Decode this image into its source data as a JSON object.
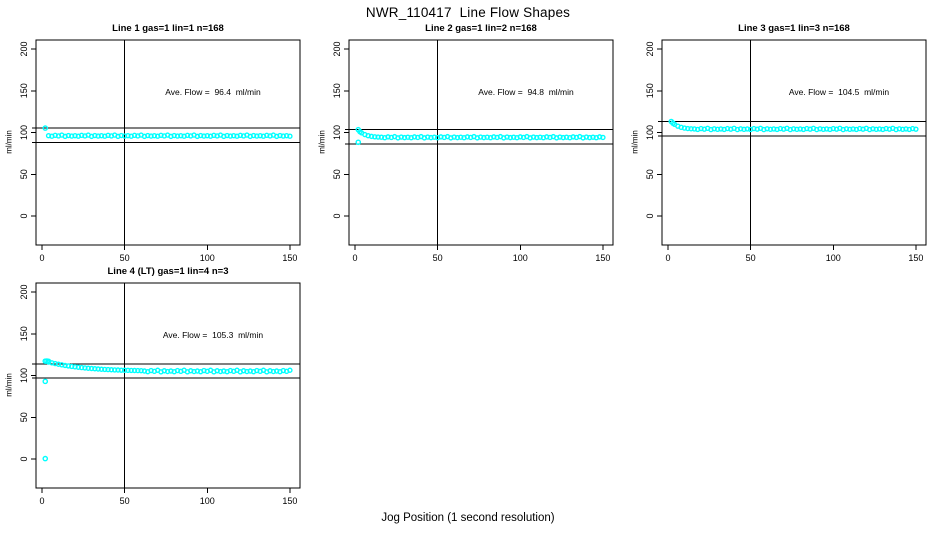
{
  "page": {
    "title": "NWR_110417  Line Flow Shapes",
    "xlabel": "Jog Position (1 second resolution)"
  },
  "chart_data": [
    {
      "type": "scatter",
      "title": "Line 1 gas=1 lin=1 n=168",
      "annotation": "Ave. Flow =  96.4  ml/min",
      "ave_flow_ml_min": 96.4,
      "ylabel": "ml/min",
      "point_color": "#00FFFF",
      "line_color": "#000000",
      "xticks": [
        0,
        50,
        100,
        150
      ],
      "yticks": [
        0,
        50,
        100,
        150,
        200
      ],
      "xlim": [
        -3.6,
        156.1
      ],
      "ylim": [
        -34.7,
        210.8
      ],
      "vline_x": 50,
      "hlines": [
        105.4,
        88.0
      ],
      "series": {
        "x_start": 4,
        "x_step": 2,
        "y": [
          96.2,
          95.6,
          96.6,
          95.9,
          96.9,
          95.4,
          96.4,
          95.7,
          96.2,
          95.6,
          96.6,
          95.9,
          96.9,
          95.4,
          96.4,
          95.7,
          96.2,
          95.6,
          96.6,
          95.9,
          96.9,
          95.4,
          96.4,
          95.7,
          96.2,
          95.6,
          96.6,
          95.9,
          96.9,
          95.4,
          96.4,
          95.7,
          96.2,
          95.6,
          96.6,
          95.9,
          96.9,
          95.4,
          96.4,
          95.7,
          96.2,
          95.6,
          96.6,
          95.9,
          96.9,
          95.4,
          96.4,
          95.7,
          96.2,
          95.6,
          96.6,
          95.9,
          96.9,
          95.4,
          96.4,
          95.7,
          96.2,
          95.6,
          96.6,
          95.9,
          96.9,
          95.4,
          96.4,
          95.7,
          96.2,
          95.6,
          96.6,
          95.9,
          96.9,
          95.4,
          96.4,
          95.7,
          96.2,
          95.6
        ]
      },
      "extra_points": [
        [
          2,
          105.3
        ]
      ]
    },
    {
      "type": "scatter",
      "title": "Line 2 gas=1 lin=2 n=168",
      "annotation": "Ave. Flow =  94.8  ml/min",
      "ave_flow_ml_min": 94.8,
      "ylabel": "ml/min",
      "point_color": "#00FFFF",
      "line_color": "#000000",
      "xticks": [
        0,
        50,
        100,
        150
      ],
      "yticks": [
        0,
        50,
        100,
        150,
        200
      ],
      "xlim": [
        -3.6,
        156.1
      ],
      "ylim": [
        -34.7,
        210.8
      ],
      "vline_x": 50,
      "hlines": [
        103.4,
        86.4
      ],
      "series": {
        "x_start": 4,
        "x_step": 2,
        "y": [
          99.6,
          97.5,
          96.2,
          95.4,
          94.9,
          94.6,
          94.4,
          93.8,
          94.8,
          94.1,
          95.1,
          93.6,
          94.6,
          93.9,
          94.4,
          93.8,
          94.8,
          94.1,
          95.1,
          93.6,
          94.6,
          93.9,
          94.4,
          93.8,
          94.8,
          94.1,
          95.1,
          93.6,
          94.6,
          93.9,
          94.4,
          93.8,
          94.8,
          94.1,
          95.1,
          93.6,
          94.6,
          93.9,
          94.4,
          93.8,
          94.8,
          94.1,
          95.1,
          93.6,
          94.6,
          93.9,
          94.4,
          93.8,
          94.8,
          94.1,
          95.1,
          93.6,
          94.6,
          93.9,
          94.4,
          93.8,
          94.8,
          94.1,
          95.1,
          93.6,
          94.6,
          93.9,
          94.4,
          93.8,
          94.8,
          94.1,
          95.1,
          93.6,
          94.6,
          93.9,
          94.4,
          93.8,
          94.8,
          94.1
        ]
      },
      "extra_points": [
        [
          2,
          103.4
        ],
        [
          3,
          101.0
        ],
        [
          2,
          88.3
        ]
      ]
    },
    {
      "type": "scatter",
      "title": "Line 3 gas=1 lin=3 n=168",
      "annotation": "Ave. Flow =  104.5  ml/min",
      "ave_flow_ml_min": 104.5,
      "ylabel": "ml/min",
      "point_color": "#00FFFF",
      "line_color": "#000000",
      "xticks": [
        0,
        50,
        100,
        150
      ],
      "yticks": [
        0,
        50,
        100,
        150,
        200
      ],
      "xlim": [
        -3.6,
        156.1
      ],
      "ylim": [
        -34.7,
        210.8
      ],
      "vline_x": 50,
      "hlines": [
        113.0,
        96.0
      ],
      "series": {
        "x_start": 4,
        "x_step": 2,
        "y": [
          109.8,
          107.6,
          106.2,
          105.3,
          104.8,
          104.5,
          104.3,
          103.7,
          104.7,
          104.0,
          105.0,
          103.5,
          104.5,
          103.8,
          104.3,
          103.7,
          104.7,
          104.0,
          105.0,
          103.5,
          104.5,
          103.8,
          104.3,
          103.7,
          104.7,
          104.0,
          105.0,
          103.5,
          104.5,
          103.8,
          104.3,
          103.7,
          104.7,
          104.0,
          105.0,
          103.5,
          104.5,
          103.8,
          104.3,
          103.7,
          104.7,
          104.0,
          105.0,
          103.5,
          104.5,
          103.8,
          104.3,
          103.7,
          104.7,
          104.0,
          105.0,
          103.5,
          104.5,
          103.8,
          104.3,
          103.7,
          104.7,
          104.0,
          105.0,
          103.5,
          104.5,
          103.8,
          104.3,
          103.7,
          104.7,
          104.0,
          105.0,
          103.5,
          104.5,
          103.8,
          104.3,
          103.7,
          104.7,
          104.0
        ]
      },
      "extra_points": [
        [
          2,
          113.2
        ],
        [
          3,
          111.3
        ]
      ]
    },
    {
      "type": "scatter",
      "title": "Line 4 (LT) gas=1 lin=4 n=3",
      "annotation": "Ave. Flow =  105.3  ml/min",
      "ave_flow_ml_min": 105.3,
      "ylabel": "ml/min",
      "point_color": "#00FFFF",
      "line_color": "#000000",
      "xticks": [
        0,
        50,
        100,
        150
      ],
      "yticks": [
        0,
        50,
        100,
        150,
        200
      ],
      "xlim": [
        -3.6,
        156.1
      ],
      "ylim": [
        -34.7,
        210.8
      ],
      "vline_x": 50,
      "hlines": [
        113.8,
        97.0
      ],
      "series": {
        "x_start": 4,
        "x_step": 2,
        "y": [
          116.2,
          115.2,
          114.3,
          113.5,
          112.8,
          112.1,
          111.5,
          110.9,
          110.4,
          109.9,
          109.5,
          109.1,
          108.7,
          108.4,
          108.1,
          107.8,
          107.5,
          107.3,
          107.1,
          106.9,
          106.7,
          106.6,
          106.4,
          106.3,
          106.2,
          106.1,
          106.0,
          105.9,
          105.8,
          105.4,
          104.6,
          105.9,
          105.0,
          106.3,
          104.4,
          105.7,
          104.8,
          105.4,
          104.6,
          105.9,
          105.0,
          106.3,
          104.4,
          105.7,
          104.8,
          105.4,
          104.6,
          105.9,
          105.0,
          106.3,
          104.4,
          105.7,
          104.8,
          105.4,
          104.6,
          105.9,
          105.0,
          106.3,
          104.4,
          105.7,
          104.8,
          105.4,
          104.6,
          105.9,
          105.0,
          106.3,
          104.4,
          105.7,
          104.8,
          105.4,
          104.6,
          105.9,
          105.0,
          106.3
        ]
      },
      "extra_points": [
        [
          2,
          117.2
        ],
        [
          3,
          117.3
        ],
        [
          4,
          117.0
        ],
        [
          2,
          93.0
        ],
        [
          2,
          0.5
        ]
      ]
    }
  ]
}
